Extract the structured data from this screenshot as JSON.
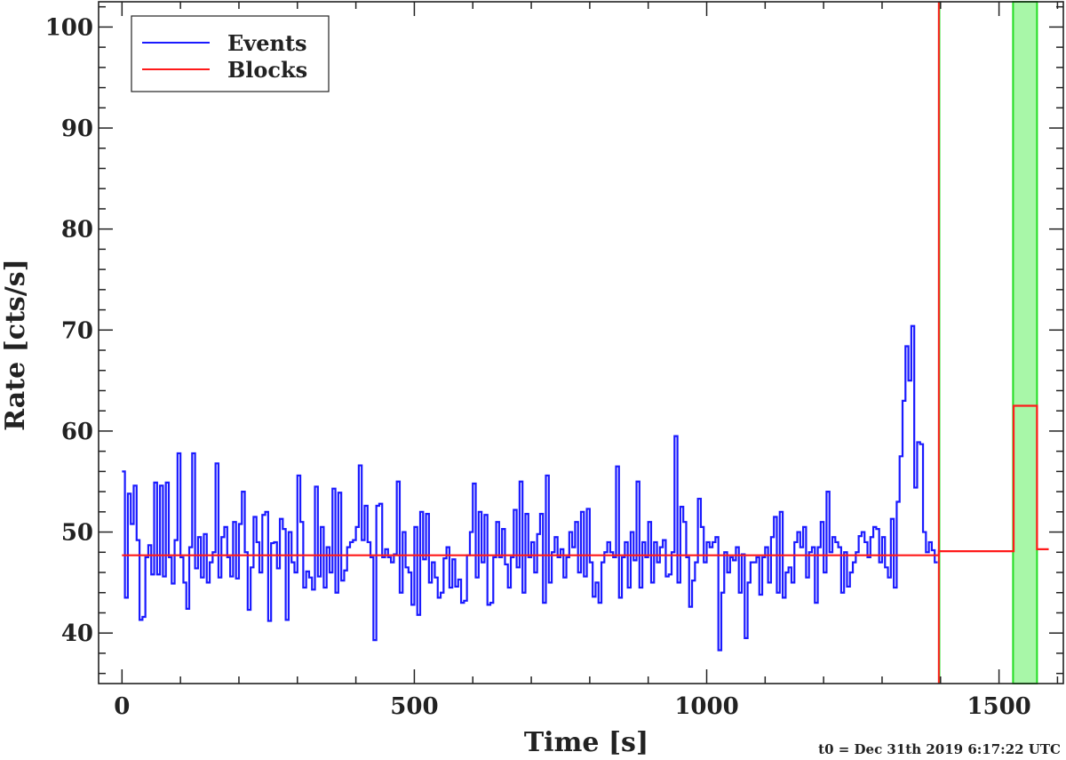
{
  "chart_data": {
    "type": "line",
    "xlabel": "Time [s]",
    "ylabel": "Rate [cts/s]",
    "xlim": [
      -40,
      1610
    ],
    "ylim": [
      35,
      102.5
    ],
    "x_ticks": [
      0,
      500,
      1000,
      1500
    ],
    "y_ticks": [
      40,
      50,
      60,
      70,
      80,
      90,
      100
    ],
    "grid": false,
    "legend_position": "top-left",
    "footnote": "t0 = Dec 31th 2019 6:17:22 UTC",
    "colors": {
      "events": "#1a1aff",
      "blocks": "#ff1a1a",
      "interval": "#22dd22",
      "interval_fill": "#a8f7a8"
    },
    "series": [
      {
        "name": "Events",
        "style": "step",
        "bin_width": 5,
        "x_start": 0,
        "values": [
          56.0,
          43.5,
          53.8,
          50.8,
          54.6,
          49.2,
          41.3,
          41.6,
          47.5,
          48.7,
          45.8,
          54.9,
          45.8,
          54.6,
          45.6,
          54.9,
          47.5,
          44.9,
          49.2,
          57.8,
          47.5,
          45.0,
          42.4,
          48.5,
          57.8,
          46.4,
          49.5,
          45.5,
          49.8,
          45.0,
          47.0,
          48.0,
          56.8,
          45.5,
          49.5,
          50.5,
          47.5,
          45.6,
          51.0,
          45.4,
          50.8,
          54.0,
          48.0,
          42.3,
          46.5,
          51.5,
          49.0,
          46.0,
          51.7,
          52.0,
          41.2,
          48.9,
          49.0,
          46.4,
          51.3,
          50.3,
          41.3,
          50.0,
          47.0,
          46.0,
          55.6,
          51.0,
          44.5,
          46.1,
          45.5,
          44.3,
          54.5,
          45.6,
          50.5,
          44.5,
          48.5,
          46.0,
          54.3,
          44.0,
          53.9,
          45.2,
          46.2,
          48.5,
          49.0,
          49.2,
          50.5,
          56.6,
          49.2,
          52.6,
          49.0,
          47.5,
          39.3,
          52.6,
          52.8,
          47.5,
          48.3,
          47.5,
          47.0,
          47.8,
          55.0,
          44.0,
          50.0,
          46.5,
          46.0,
          42.8,
          50.5,
          41.8,
          52.0,
          47.3,
          51.8,
          45.0,
          47.0,
          45.5,
          43.5,
          44.0,
          47.4,
          48.5,
          44.5,
          47.3,
          44.6,
          45.3,
          43.0,
          43.2,
          47.7,
          50.0,
          54.8,
          45.5,
          52.0,
          47.0,
          51.7,
          42.8,
          43.0,
          47.5,
          51.0,
          47.5,
          50.3,
          46.8,
          44.5,
          47.5,
          52.2,
          46.5,
          55.0,
          44.0,
          51.8,
          47.5,
          49.0,
          46.0,
          49.8,
          51.8,
          43.0,
          55.6,
          45.0,
          48.0,
          49.5,
          47.5,
          48.3,
          45.5,
          47.5,
          50.0,
          48.5,
          51.0,
          46.0,
          52.0,
          45.6,
          52.3,
          47.0,
          43.6,
          45.0,
          43.0,
          47.0,
          48.0,
          49.0,
          48.0,
          47.5,
          56.5,
          43.5,
          47.5,
          49.0,
          44.5,
          50.0,
          47.2,
          55.0,
          44.5,
          49.0,
          47.5,
          51.0,
          45.0,
          49.0,
          47.0,
          48.5,
          49.2,
          45.6,
          45.8,
          48.0,
          59.5,
          45.0,
          52.5,
          51.0,
          47.5,
          42.6,
          45.2,
          47.0,
          53.3,
          50.5,
          47.0,
          49.0,
          48.5,
          49.0,
          49.5,
          38.3,
          44.0,
          48.0,
          46.0,
          47.5,
          47.2,
          48.5,
          44.0,
          47.8,
          39.5,
          45.0,
          47.0,
          47.0,
          47.5,
          43.8,
          47.5,
          48.5,
          45.0,
          49.5,
          51.5,
          44.0,
          52.0,
          43.5,
          46.0,
          46.5,
          45.0,
          49.0,
          50.0,
          48.5,
          50.5,
          45.5,
          48.0,
          48.5,
          43.0,
          48.5,
          51.0,
          46.0,
          54.0,
          48.0,
          49.5,
          49.0,
          48.5,
          44.0,
          48.0,
          44.6,
          46.0,
          47.0,
          48.0,
          49.6,
          50.0,
          49.0,
          47.5,
          49.5,
          50.5,
          50.3,
          47.0,
          49.5,
          46.5,
          45.5,
          51.3,
          44.5,
          53.0,
          57.5,
          63.0,
          68.4,
          65.0,
          70.4,
          54.4,
          58.9,
          58.7,
          50.0,
          48.0,
          49.0,
          48.2,
          47.0
        ]
      },
      {
        "name": "Blocks",
        "style": "step",
        "blocks": [
          {
            "start": 0,
            "end": 1397,
            "rate": 47.7
          },
          {
            "start": 1397,
            "end": 1525,
            "rate": 48.1
          },
          {
            "start": 1525,
            "end": 1565,
            "rate": 62.5
          },
          {
            "start": 1565,
            "end": 1585,
            "rate": 48.3
          }
        ]
      }
    ],
    "markers": [
      {
        "type": "vline",
        "x": 1398,
        "color": "#22dd22"
      },
      {
        "type": "vline",
        "x": 1397,
        "color": "#ff1a1a"
      },
      {
        "type": "vspan",
        "x0": 1524,
        "x1": 1565
      }
    ]
  }
}
